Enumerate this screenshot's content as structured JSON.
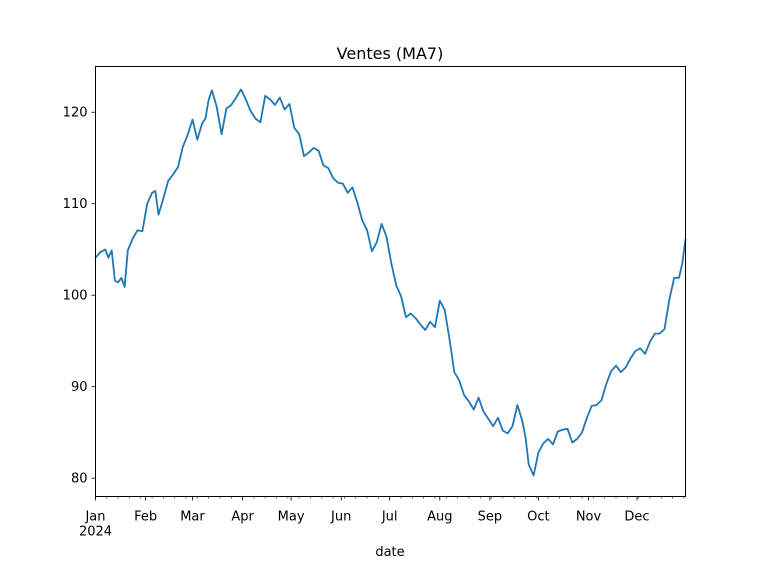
{
  "chart_data": {
    "type": "line",
    "title": "Ventes (MA7)",
    "xlabel": "date",
    "ylabel": "",
    "x_range": [
      "2024-01-01",
      "2024-12-31"
    ],
    "ylim": [
      78,
      125
    ],
    "grid": false,
    "legend": "none",
    "x_ticks": [
      {
        "date": "2024-01-01",
        "label": "Jan",
        "sublabel": "2024"
      },
      {
        "date": "2024-02-01",
        "label": "Feb"
      },
      {
        "date": "2024-03-01",
        "label": "Mar"
      },
      {
        "date": "2024-04-01",
        "label": "Apr"
      },
      {
        "date": "2024-05-01",
        "label": "May"
      },
      {
        "date": "2024-06-01",
        "label": "Jun"
      },
      {
        "date": "2024-07-01",
        "label": "Jul"
      },
      {
        "date": "2024-08-01",
        "label": "Aug"
      },
      {
        "date": "2024-09-01",
        "label": "Sep"
      },
      {
        "date": "2024-10-01",
        "label": "Oct"
      },
      {
        "date": "2024-11-01",
        "label": "Nov"
      },
      {
        "date": "2024-12-01",
        "label": "Dec"
      }
    ],
    "y_ticks": [
      80,
      90,
      100,
      110,
      120
    ],
    "series": [
      {
        "color": "#1f77b4",
        "x": [
          "2024-01-01",
          "2024-01-04",
          "2024-01-07",
          "2024-01-09",
          "2024-01-11",
          "2024-01-13",
          "2024-01-15",
          "2024-01-17",
          "2024-01-19",
          "2024-01-21",
          "2024-01-24",
          "2024-01-27",
          "2024-01-30",
          "2024-02-02",
          "2024-02-05",
          "2024-02-07",
          "2024-02-09",
          "2024-02-12",
          "2024-02-15",
          "2024-02-18",
          "2024-02-21",
          "2024-02-24",
          "2024-02-27",
          "2024-03-01",
          "2024-03-04",
          "2024-03-07",
          "2024-03-09",
          "2024-03-11",
          "2024-03-13",
          "2024-03-16",
          "2024-03-19",
          "2024-03-22",
          "2024-03-25",
          "2024-03-28",
          "2024-03-31",
          "2024-04-03",
          "2024-04-06",
          "2024-04-09",
          "2024-04-12",
          "2024-04-15",
          "2024-04-18",
          "2024-04-21",
          "2024-04-24",
          "2024-04-27",
          "2024-04-30",
          "2024-05-03",
          "2024-05-06",
          "2024-05-09",
          "2024-05-12",
          "2024-05-15",
          "2024-05-18",
          "2024-05-21",
          "2024-05-24",
          "2024-05-27",
          "2024-05-30",
          "2024-06-02",
          "2024-06-05",
          "2024-06-08",
          "2024-06-11",
          "2024-06-14",
          "2024-06-17",
          "2024-06-20",
          "2024-06-23",
          "2024-06-26",
          "2024-06-29",
          "2024-07-02",
          "2024-07-05",
          "2024-07-08",
          "2024-07-11",
          "2024-07-14",
          "2024-07-17",
          "2024-07-20",
          "2024-07-23",
          "2024-07-26",
          "2024-07-29",
          "2024-08-01",
          "2024-08-04",
          "2024-08-07",
          "2024-08-10",
          "2024-08-13",
          "2024-08-16",
          "2024-08-19",
          "2024-08-22",
          "2024-08-25",
          "2024-08-28",
          "2024-08-31",
          "2024-09-03",
          "2024-09-06",
          "2024-09-09",
          "2024-09-12",
          "2024-09-15",
          "2024-09-18",
          "2024-09-21",
          "2024-09-23",
          "2024-09-25",
          "2024-09-28",
          "2024-10-01",
          "2024-10-04",
          "2024-10-07",
          "2024-10-10",
          "2024-10-13",
          "2024-10-16",
          "2024-10-19",
          "2024-10-22",
          "2024-10-25",
          "2024-10-28",
          "2024-10-31",
          "2024-11-03",
          "2024-11-06",
          "2024-11-09",
          "2024-11-12",
          "2024-11-15",
          "2024-11-18",
          "2024-11-21",
          "2024-11-24",
          "2024-11-27",
          "2024-11-30",
          "2024-12-03",
          "2024-12-06",
          "2024-12-09",
          "2024-12-12",
          "2024-12-15",
          "2024-12-18",
          "2024-12-21",
          "2024-12-24",
          "2024-12-27",
          "2024-12-29",
          "2024-12-31"
        ],
        "y": [
          104.1,
          104.7,
          105.0,
          104.1,
          104.9,
          101.6,
          101.4,
          101.9,
          100.9,
          104.9,
          106.2,
          107.1,
          107.0,
          110.0,
          111.2,
          111.4,
          108.8,
          110.6,
          112.5,
          113.2,
          114.0,
          116.2,
          117.5,
          119.2,
          117.0,
          118.8,
          119.3,
          121.4,
          122.4,
          120.6,
          117.6,
          120.4,
          120.8,
          121.6,
          122.5,
          121.4,
          120.1,
          119.3,
          118.9,
          121.8,
          121.4,
          120.8,
          121.6,
          120.3,
          120.9,
          118.3,
          117.6,
          115.2,
          115.6,
          116.1,
          115.8,
          114.2,
          113.9,
          112.8,
          112.3,
          112.2,
          111.2,
          111.8,
          110.1,
          108.2,
          107.1,
          104.8,
          105.8,
          107.8,
          106.4,
          103.5,
          101.1,
          99.9,
          97.6,
          98.0,
          97.5,
          96.8,
          96.2,
          97.1,
          96.5,
          99.4,
          98.4,
          95.2,
          91.6,
          90.7,
          89.1,
          88.4,
          87.5,
          88.8,
          87.3,
          86.5,
          85.7,
          86.6,
          85.2,
          84.9,
          85.7,
          88.0,
          86.3,
          84.5,
          81.5,
          80.3,
          82.8,
          83.8,
          84.3,
          83.7,
          85.1,
          85.3,
          85.4,
          83.9,
          84.3,
          85.0,
          86.6,
          87.9,
          88.0,
          88.5,
          90.3,
          91.7,
          92.3,
          91.6,
          92.1,
          93.1,
          93.9,
          94.2,
          93.6,
          94.9,
          95.8,
          95.8,
          96.3,
          99.5,
          101.9,
          101.9,
          103.5,
          106.1
        ]
      }
    ]
  }
}
